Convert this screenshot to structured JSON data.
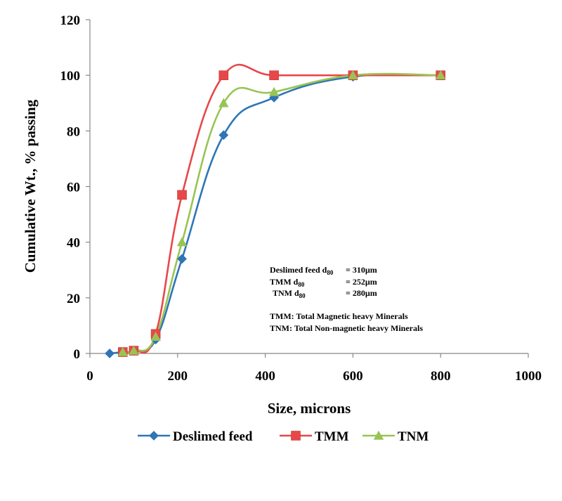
{
  "chart_data": {
    "type": "line",
    "title": "",
    "xlabel": "Size, microns",
    "ylabel": "Cumulative Wt., % passing",
    "xlim": [
      0,
      1000
    ],
    "ylim": [
      0,
      120
    ],
    "xticks": [
      "0",
      "200",
      "400",
      "600",
      "800",
      "1000"
    ],
    "yticks": [
      "0",
      "20",
      "40",
      "60",
      "80",
      "100",
      "120"
    ],
    "grid": false,
    "legend_position": "bottom",
    "smooth": true,
    "series": [
      {
        "name": "Deslimed feed",
        "color": "#2e75b6",
        "marker": "diamond",
        "x": [
          45,
          75,
          100,
          150,
          210,
          305,
          420,
          600,
          800
        ],
        "y": [
          0,
          0.5,
          1,
          5,
          34,
          78.5,
          92,
          99.5,
          100
        ]
      },
      {
        "name": "TMM",
        "color": "#e8474a",
        "marker": "square",
        "x": [
          75,
          100,
          150,
          210,
          305,
          420,
          600,
          800
        ],
        "y": [
          0.5,
          1,
          7,
          57,
          100,
          100,
          100,
          100
        ]
      },
      {
        "name": "TNM",
        "color": "#98c454",
        "marker": "triangle",
        "x": [
          75,
          100,
          150,
          210,
          305,
          420,
          600,
          800
        ],
        "y": [
          0.5,
          1,
          6,
          40,
          90,
          94,
          100,
          100
        ]
      }
    ],
    "annotations": {
      "deslimed_d80": {
        "prefix": "Deslimed feed d",
        "sub": "80",
        "value": "= 310µm"
      },
      "tmm_d80": {
        "prefix": "TMM d",
        "sub": "80",
        "value": "= 252µm"
      },
      "tnm_d80": {
        "prefix": "TNM d",
        "sub": "80",
        "value": "= 280µm"
      },
      "tmm_def": "TMM: Total Magnetic heavy Minerals",
      "tnm_def": "TNM: Total Non-magnetic heavy Minerals"
    }
  }
}
